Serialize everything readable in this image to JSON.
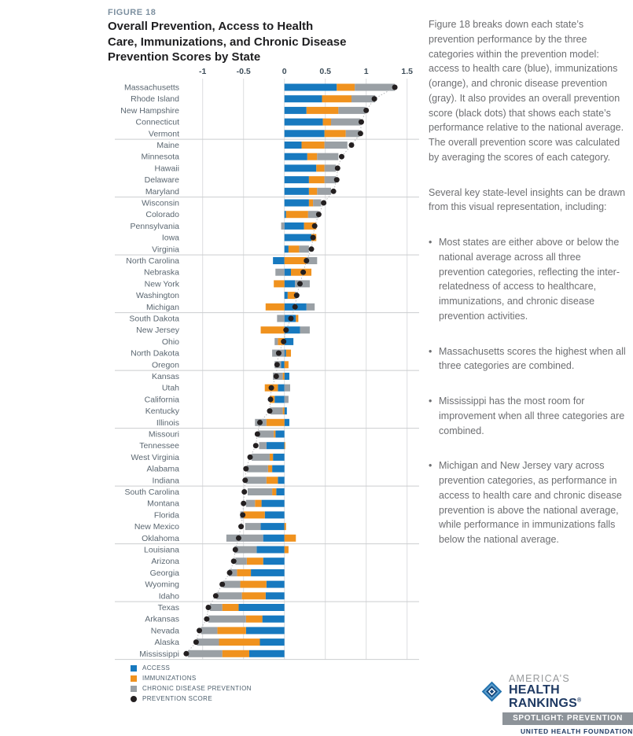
{
  "figure": {
    "label": "FIGURE 18",
    "title_lines": [
      "Overall Prevention, Access to Health",
      "Care, Immunizations, and Chronic Disease",
      "Prevention Scores by State"
    ]
  },
  "chart_data": {
    "type": "bar",
    "orientation": "horizontal",
    "stacked": true,
    "xlim": [
      -1.25,
      1.6
    ],
    "ticks": [
      {
        "label": "-1",
        "value": -1
      },
      {
        "label": "-0.5",
        "value": -0.5
      },
      {
        "label": "0",
        "value": 0
      },
      {
        "label": "0.5",
        "value": 0.5
      },
      {
        "label": "1",
        "value": 1
      },
      {
        "label": "1.5",
        "value": 1.5
      }
    ],
    "group_separators_every": 5,
    "colors": {
      "access": "#1779bf",
      "immunizations": "#f0921e",
      "chronic": "#9aa0a5",
      "score": "#231f20",
      "gridline": "#dcdee0",
      "separator": "#cbcdcf",
      "connector": "#b4b6b8"
    },
    "legend": [
      {
        "label": "ACCESS",
        "color": "#1779bf",
        "shape": "square"
      },
      {
        "label": "IMMUNIZATIONS",
        "color": "#f0921e",
        "shape": "square"
      },
      {
        "label": "CHRONIC DISEASE PREVENTION",
        "color": "#9aa0a5",
        "shape": "square"
      },
      {
        "label": "PREVENTION SCORE",
        "color": "#231f20",
        "shape": "circle"
      }
    ],
    "states": [
      {
        "name": "Massachusetts",
        "access": 0.64,
        "immunizations": 0.22,
        "chronic": 0.49,
        "score": 1.35
      },
      {
        "name": "Rhode Island",
        "access": 0.46,
        "immunizations": 0.36,
        "chronic": 0.29,
        "score": 1.1
      },
      {
        "name": "New Hampshire",
        "access": 0.27,
        "immunizations": 0.39,
        "chronic": 0.33,
        "score": 1.0
      },
      {
        "name": "Connecticut",
        "access": 0.47,
        "immunizations": 0.1,
        "chronic": 0.36,
        "score": 0.94
      },
      {
        "name": "Vermont",
        "access": 0.49,
        "immunizations": 0.26,
        "chronic": 0.17,
        "score": 0.93
      },
      {
        "name": "Maine",
        "access": 0.21,
        "immunizations": 0.28,
        "chronic": 0.28,
        "score": 0.82
      },
      {
        "name": "Minnesota",
        "access": 0.28,
        "immunizations": 0.12,
        "chronic": 0.26,
        "score": 0.7
      },
      {
        "name": "Hawaii",
        "access": 0.39,
        "immunizations": 0.1,
        "chronic": 0.14,
        "score": 0.65
      },
      {
        "name": "Delaware",
        "access": 0.3,
        "immunizations": 0.19,
        "chronic": 0.14,
        "score": 0.64
      },
      {
        "name": "Maryland",
        "access": 0.3,
        "immunizations": 0.1,
        "chronic": 0.17,
        "score": 0.6
      },
      {
        "name": "Wisconsin",
        "access": 0.3,
        "immunizations": 0.05,
        "chronic": 0.1,
        "score": 0.48
      },
      {
        "name": "Colorado",
        "access": 0.02,
        "immunizations": 0.27,
        "chronic": 0.13,
        "score": 0.42
      },
      {
        "name": "Pennsylvania",
        "access": 0.24,
        "immunizations": 0.15,
        "chronic": -0.04,
        "score": 0.37
      },
      {
        "name": "Iowa",
        "access": 0.33,
        "immunizations": 0.06,
        "chronic": 0.0,
        "score": 0.35
      },
      {
        "name": "Virginia",
        "access": 0.05,
        "immunizations": 0.13,
        "chronic": 0.12,
        "score": 0.33
      },
      {
        "name": "North Carolina",
        "access": -0.14,
        "immunizations": 0.27,
        "chronic": 0.13,
        "score": 0.27
      },
      {
        "name": "Nebraska",
        "access": 0.08,
        "immunizations": 0.25,
        "chronic": -0.11,
        "score": 0.23
      },
      {
        "name": "New York",
        "access": 0.13,
        "immunizations": -0.13,
        "chronic": 0.18,
        "score": 0.19
      },
      {
        "name": "Washington",
        "access": 0.04,
        "immunizations": 0.09,
        "chronic": 0.02,
        "score": 0.15
      },
      {
        "name": "Michigan",
        "access": 0.27,
        "immunizations": -0.23,
        "chronic": 0.1,
        "score": 0.13
      },
      {
        "name": "South Dakota",
        "access": 0.14,
        "immunizations": 0.03,
        "chronic": -0.09,
        "score": 0.08
      },
      {
        "name": "New Jersey",
        "access": 0.19,
        "immunizations": -0.29,
        "chronic": 0.12,
        "score": 0.02
      },
      {
        "name": "Ohio",
        "access": 0.11,
        "immunizations": -0.08,
        "chronic": -0.04,
        "score": -0.01
      },
      {
        "name": "North Dakota",
        "access": 0.02,
        "immunizations": 0.06,
        "chronic": -0.15,
        "score": -0.07
      },
      {
        "name": "Oregon",
        "access": -0.04,
        "immunizations": 0.05,
        "chronic": -0.08,
        "score": -0.09
      },
      {
        "name": "Kansas",
        "access": 0.06,
        "immunizations": -0.02,
        "chronic": -0.12,
        "score": -0.1
      },
      {
        "name": "Utah",
        "access": -0.08,
        "immunizations": -0.16,
        "chronic": 0.07,
        "score": -0.16
      },
      {
        "name": "California",
        "access": -0.12,
        "immunizations": -0.06,
        "chronic": 0.05,
        "score": -0.17
      },
      {
        "name": "Kentucky",
        "access": 0.03,
        "immunizations": -0.02,
        "chronic": -0.15,
        "score": -0.18
      },
      {
        "name": "Illinois",
        "access": 0.06,
        "immunizations": -0.22,
        "chronic": -0.14,
        "score": -0.3
      },
      {
        "name": "Missouri",
        "access": -0.11,
        "immunizations": -0.02,
        "chronic": -0.19,
        "score": -0.33
      },
      {
        "name": "Tennessee",
        "access": -0.22,
        "immunizations": 0.01,
        "chronic": -0.09,
        "score": -0.35
      },
      {
        "name": "West Virginia",
        "access": -0.14,
        "immunizations": -0.04,
        "chronic": -0.22,
        "score": -0.42
      },
      {
        "name": "Alabama",
        "access": -0.15,
        "immunizations": -0.05,
        "chronic": -0.26,
        "score": -0.47
      },
      {
        "name": "Indiana",
        "access": -0.08,
        "immunizations": -0.14,
        "chronic": -0.25,
        "score": -0.48
      },
      {
        "name": "South Carolina",
        "access": -0.1,
        "immunizations": -0.05,
        "chronic": -0.3,
        "score": -0.49
      },
      {
        "name": "Montana",
        "access": -0.28,
        "immunizations": -0.08,
        "chronic": -0.11,
        "score": -0.5
      },
      {
        "name": "Florida",
        "access": -0.24,
        "immunizations": -0.26,
        "chronic": -0.04,
        "score": -0.51
      },
      {
        "name": "New Mexico",
        "access": -0.29,
        "immunizations": 0.02,
        "chronic": -0.19,
        "score": -0.53
      },
      {
        "name": "Oklahoma",
        "access": -0.26,
        "immunizations": 0.14,
        "chronic": -0.45,
        "score": -0.56
      },
      {
        "name": "Louisiana",
        "access": -0.34,
        "immunizations": 0.05,
        "chronic": -0.27,
        "score": -0.6
      },
      {
        "name": "Arizona",
        "access": -0.26,
        "immunizations": -0.2,
        "chronic": -0.14,
        "score": -0.62
      },
      {
        "name": "Georgia",
        "access": -0.41,
        "immunizations": -0.17,
        "chronic": -0.1,
        "score": -0.67
      },
      {
        "name": "Wyoming",
        "access": -0.22,
        "immunizations": -0.32,
        "chronic": -0.21,
        "score": -0.76
      },
      {
        "name": "Idaho",
        "access": -0.23,
        "immunizations": -0.29,
        "chronic": -0.31,
        "score": -0.84
      },
      {
        "name": "Texas",
        "access": -0.56,
        "immunizations": -0.2,
        "chronic": -0.15,
        "score": -0.93
      },
      {
        "name": "Arkansas",
        "access": -0.27,
        "immunizations": -0.2,
        "chronic": -0.46,
        "score": -0.95
      },
      {
        "name": "Nevada",
        "access": -0.47,
        "immunizations": -0.35,
        "chronic": -0.2,
        "score": -1.04
      },
      {
        "name": "Alaska",
        "access": -0.3,
        "immunizations": -0.5,
        "chronic": -0.27,
        "score": -1.08
      },
      {
        "name": "Mississippi",
        "access": -0.43,
        "immunizations": -0.33,
        "chronic": -0.42,
        "score": -1.2
      }
    ]
  },
  "commentary": {
    "p1": "Figure 18 breaks down each state’s prevention performance by the three categories within the prevention model: access to health care (blue), immunizations (orange), and chronic disease prevention (gray). It also provides an overall prevention score (black dots) that shows each state’s performance relative to the national average. The overall prevention score was calculated by averaging the scores of each category.",
    "p2": "Several key state-level insights can be drawn from this visual representation, including:",
    "bullets": [
      "Most states are either above or below the national average across all three prevention categories, reflecting the inter-relatedness of access to healthcare, immunizations, and chronic disease prevention activities.",
      "Massachusetts scores the highest when all three categories are combined.",
      "Mississippi has the most room for improvement when all three categories are combined.",
      "Michigan and New Jersey vary across prevention categories, as performance in access to health care and chronic disease prevention is above the national average, while performance in immunizations falls below the national average."
    ]
  },
  "logo": {
    "brand_top": "AMERICA’S",
    "brand_main": "HEALTH RANKINGS",
    "registered": "®",
    "banner": "SPOTLIGHT: PREVENTION",
    "foundation": "UNITED HEALTH FOUNDATION"
  }
}
